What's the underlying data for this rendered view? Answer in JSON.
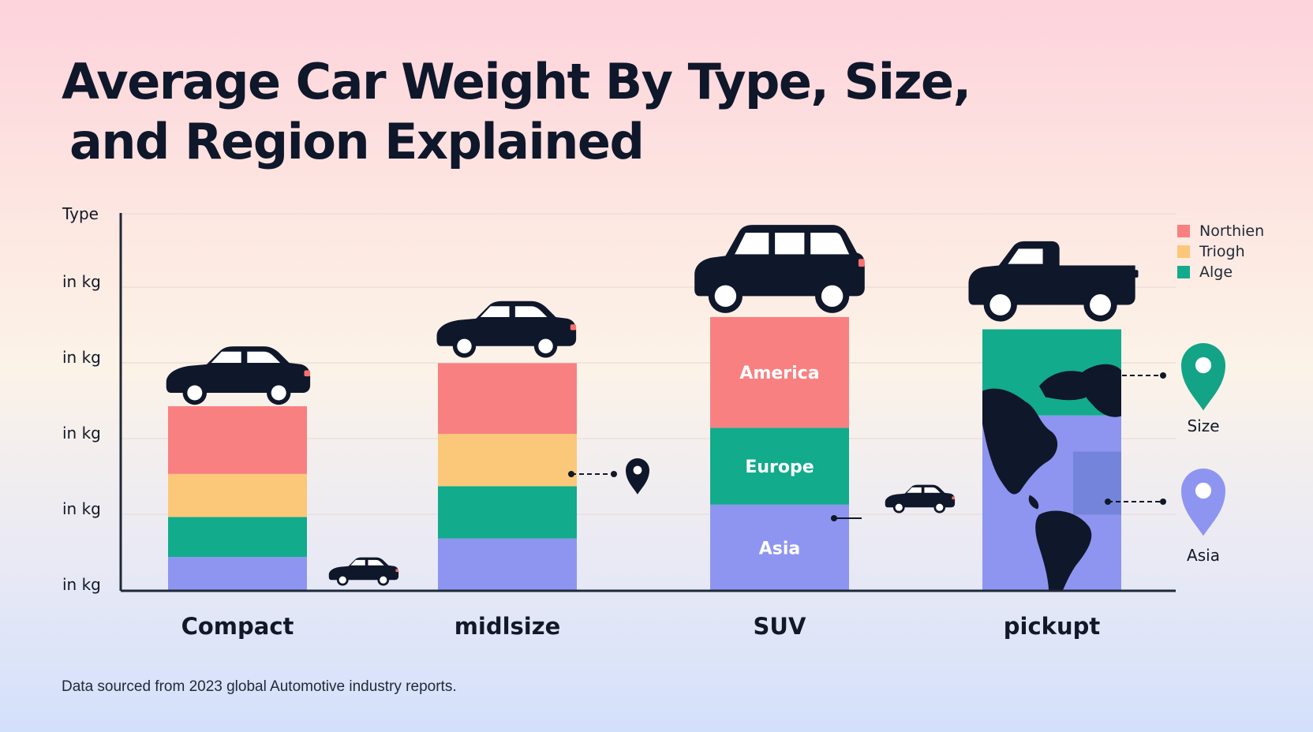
{
  "title_line1": "Average Car Weight By Type, Size,",
  "title_line2": "and Region Explained",
  "source": "Data sourced from 2023 global Automotive industry reports.",
  "legend": [
    {
      "label": "Northien",
      "color": "#f98080"
    },
    {
      "label": "Triogh",
      "color": "#fbc879"
    },
    {
      "label": "Alge",
      "color": "#12ab8c"
    }
  ],
  "pins": [
    {
      "label": "Size",
      "color": "#13a387"
    },
    {
      "label": "Asia",
      "color": "#8e95f0"
    }
  ],
  "segment_labels": [
    "America",
    "Europe",
    "Asia"
  ],
  "chart_data": {
    "type": "bar",
    "stacked": true,
    "title": "Average Car Weight By Type, Size, and Region Explained",
    "ylabel": "Type",
    "y_tick_labels": [
      "in kg",
      "in kg",
      "in kg",
      "in kg",
      "in kg"
    ],
    "categories": [
      "Compact",
      "midlsize",
      "SUV",
      "pickupt"
    ],
    "ylim": [
      0,
      100
    ],
    "colors": {
      "Northien": "#f98080",
      "Triogh": "#fbc879",
      "Alge": "#12ab8c",
      "Asia": "#8e95f0"
    },
    "series": [
      {
        "name": "Asia",
        "values": [
          11,
          17,
          28,
          57
        ]
      },
      {
        "name": "Alge",
        "values": [
          13,
          17,
          25,
          28
        ]
      },
      {
        "name": "Triogh",
        "values": [
          14,
          17,
          0,
          0
        ]
      },
      {
        "name": "Northien",
        "values": [
          22,
          23,
          36,
          0
        ]
      }
    ]
  }
}
